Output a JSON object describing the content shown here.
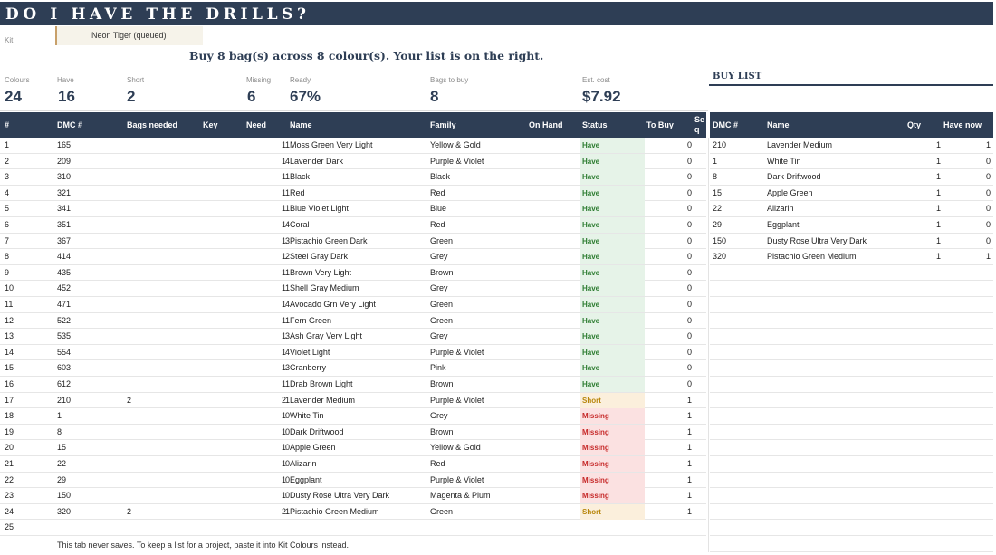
{
  "title": "DO I HAVE THE DRILLS?",
  "kit": {
    "label": "Kit",
    "value": "Neon Tiger (queued)"
  },
  "summary": "Buy 8 bag(s) across 8 colour(s). Your list is on the right.",
  "kpis": [
    {
      "label": "Colours",
      "value": "24"
    },
    {
      "label": "Have",
      "value": "16"
    },
    {
      "label": "Short",
      "value": "2"
    },
    {
      "label": "Missing",
      "value": "6"
    },
    {
      "label": "Ready",
      "value": "67%"
    },
    {
      "label": "Bags to buy",
      "value": "8"
    },
    {
      "label": "Est. cost",
      "value": "$7.92"
    }
  ],
  "buy_list_title": "BUY LIST",
  "columns": [
    "#",
    "DMC #",
    "Bags needed",
    "Key",
    "Need",
    "Name",
    "Family",
    "On Hand",
    "Status",
    "To Buy",
    "Se q"
  ],
  "buy_columns": [
    "DMC #",
    "Name",
    "Qty",
    "Have now"
  ],
  "status_colors": {
    "Have": "#2e7d32",
    "Short": "#b8860b",
    "Missing": "#c62828"
  },
  "status_bg": {
    "Have": "#e6f3e8",
    "Short": "#fbefdc",
    "Missing": "#fbe1e1"
  },
  "rows": [
    {
      "num": "1",
      "dmc": "165",
      "bags": "",
      "key": "",
      "need": "1",
      "name": "Moss Green Very Light",
      "family": "Yellow & Gold",
      "onhand": "1",
      "status": "Have",
      "tobuy": "0"
    },
    {
      "num": "2",
      "dmc": "209",
      "bags": "",
      "key": "",
      "need": "1",
      "name": "Lavender Dark",
      "family": "Purple & Violet",
      "onhand": "4",
      "status": "Have",
      "tobuy": "0"
    },
    {
      "num": "3",
      "dmc": "310",
      "bags": "",
      "key": "",
      "need": "1",
      "name": "Black",
      "family": "Black",
      "onhand": "1",
      "status": "Have",
      "tobuy": "0"
    },
    {
      "num": "4",
      "dmc": "321",
      "bags": "",
      "key": "",
      "need": "1",
      "name": "Red",
      "family": "Red",
      "onhand": "1",
      "status": "Have",
      "tobuy": "0"
    },
    {
      "num": "5",
      "dmc": "341",
      "bags": "",
      "key": "",
      "need": "1",
      "name": "Blue Violet Light",
      "family": "Blue",
      "onhand": "1",
      "status": "Have",
      "tobuy": "0"
    },
    {
      "num": "6",
      "dmc": "351",
      "bags": "",
      "key": "",
      "need": "1",
      "name": "Coral",
      "family": "Red",
      "onhand": "4",
      "status": "Have",
      "tobuy": "0"
    },
    {
      "num": "7",
      "dmc": "367",
      "bags": "",
      "key": "",
      "need": "1",
      "name": "Pistachio Green Dark",
      "family": "Green",
      "onhand": "3",
      "status": "Have",
      "tobuy": "0"
    },
    {
      "num": "8",
      "dmc": "414",
      "bags": "",
      "key": "",
      "need": "1",
      "name": "Steel Gray Dark",
      "family": "Grey",
      "onhand": "2",
      "status": "Have",
      "tobuy": "0"
    },
    {
      "num": "9",
      "dmc": "435",
      "bags": "",
      "key": "",
      "need": "1",
      "name": "Brown Very Light",
      "family": "Brown",
      "onhand": "1",
      "status": "Have",
      "tobuy": "0"
    },
    {
      "num": "10",
      "dmc": "452",
      "bags": "",
      "key": "",
      "need": "1",
      "name": "Shell Gray Medium",
      "family": "Grey",
      "onhand": "1",
      "status": "Have",
      "tobuy": "0"
    },
    {
      "num": "11",
      "dmc": "471",
      "bags": "",
      "key": "",
      "need": "1",
      "name": "Avocado Grn Very Light",
      "family": "Green",
      "onhand": "4",
      "status": "Have",
      "tobuy": "0"
    },
    {
      "num": "12",
      "dmc": "522",
      "bags": "",
      "key": "",
      "need": "1",
      "name": "Fern Green",
      "family": "Green",
      "onhand": "1",
      "status": "Have",
      "tobuy": "0"
    },
    {
      "num": "13",
      "dmc": "535",
      "bags": "",
      "key": "",
      "need": "1",
      "name": "Ash Gray Very Light",
      "family": "Grey",
      "onhand": "3",
      "status": "Have",
      "tobuy": "0"
    },
    {
      "num": "14",
      "dmc": "554",
      "bags": "",
      "key": "",
      "need": "1",
      "name": "Violet Light",
      "family": "Purple & Violet",
      "onhand": "4",
      "status": "Have",
      "tobuy": "0"
    },
    {
      "num": "15",
      "dmc": "603",
      "bags": "",
      "key": "",
      "need": "1",
      "name": "Cranberry",
      "family": "Pink",
      "onhand": "3",
      "status": "Have",
      "tobuy": "0"
    },
    {
      "num": "16",
      "dmc": "612",
      "bags": "",
      "key": "",
      "need": "1",
      "name": "Drab Brown Light",
      "family": "Brown",
      "onhand": "1",
      "status": "Have",
      "tobuy": "0"
    },
    {
      "num": "17",
      "dmc": "210",
      "bags": "2",
      "key": "",
      "need": "2",
      "name": "Lavender Medium",
      "family": "Purple & Violet",
      "onhand": "1",
      "status": "Short",
      "tobuy": "1"
    },
    {
      "num": "18",
      "dmc": "1",
      "bags": "",
      "key": "",
      "need": "1",
      "name": "White Tin",
      "family": "Grey",
      "onhand": "0",
      "status": "Missing",
      "tobuy": "1"
    },
    {
      "num": "19",
      "dmc": "8",
      "bags": "",
      "key": "",
      "need": "1",
      "name": "Dark Driftwood",
      "family": "Brown",
      "onhand": "0",
      "status": "Missing",
      "tobuy": "1"
    },
    {
      "num": "20",
      "dmc": "15",
      "bags": "",
      "key": "",
      "need": "1",
      "name": "Apple Green",
      "family": "Yellow & Gold",
      "onhand": "0",
      "status": "Missing",
      "tobuy": "1"
    },
    {
      "num": "21",
      "dmc": "22",
      "bags": "",
      "key": "",
      "need": "1",
      "name": "Alizarin",
      "family": "Red",
      "onhand": "0",
      "status": "Missing",
      "tobuy": "1"
    },
    {
      "num": "22",
      "dmc": "29",
      "bags": "",
      "key": "",
      "need": "1",
      "name": "Eggplant",
      "family": "Purple & Violet",
      "onhand": "0",
      "status": "Missing",
      "tobuy": "1"
    },
    {
      "num": "23",
      "dmc": "150",
      "bags": "",
      "key": "",
      "need": "1",
      "name": "Dusty Rose Ultra Very Dark",
      "family": "Magenta & Plum",
      "onhand": "0",
      "status": "Missing",
      "tobuy": "1"
    },
    {
      "num": "24",
      "dmc": "320",
      "bags": "2",
      "key": "",
      "need": "2",
      "name": "Pistachio Green Medium",
      "family": "Green",
      "onhand": "1",
      "status": "Short",
      "tobuy": "1"
    },
    {
      "num": "25",
      "dmc": "",
      "bags": "",
      "key": "",
      "need": "",
      "name": "",
      "family": "",
      "onhand": "",
      "status": "",
      "tobuy": ""
    }
  ],
  "buy_list": [
    {
      "dmc": "210",
      "name": "Lavender Medium",
      "qty": "1",
      "have": "1"
    },
    {
      "dmc": "1",
      "name": "White Tin",
      "qty": "1",
      "have": "0"
    },
    {
      "dmc": "8",
      "name": "Dark Driftwood",
      "qty": "1",
      "have": "0"
    },
    {
      "dmc": "15",
      "name": "Apple Green",
      "qty": "1",
      "have": "0"
    },
    {
      "dmc": "22",
      "name": "Alizarin",
      "qty": "1",
      "have": "0"
    },
    {
      "dmc": "29",
      "name": "Eggplant",
      "qty": "1",
      "have": "0"
    },
    {
      "dmc": "150",
      "name": "Dusty Rose Ultra Very Dark",
      "qty": "1",
      "have": "0"
    },
    {
      "dmc": "320",
      "name": "Pistachio Green Medium",
      "qty": "1",
      "have": "1"
    }
  ],
  "footer": "This tab never saves. To keep a list for a project, paste it into Kit Colours instead."
}
